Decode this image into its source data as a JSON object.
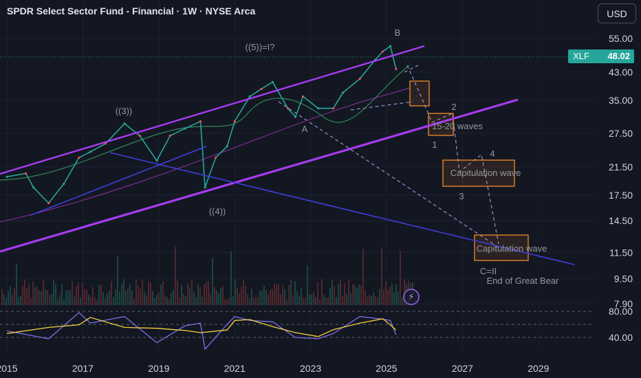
{
  "header": {
    "title": "SPDR Select Sector Fund - Financial · 1W · NYSE Arca",
    "currency_button": "USD"
  },
  "price_tag": {
    "symbol": "XLF",
    "price": "48.02",
    "color": "#26a69a"
  },
  "icons": {
    "alert": "lightning-icon"
  },
  "colors": {
    "background": "#131722",
    "channel": "#a63cf0",
    "trendline": "#3f3fd9",
    "box": "#f28c28",
    "projection": "#9a8fd6",
    "ma_fast": "#2e8b57",
    "ma_slow": "#7b2d8e",
    "rsi_line": "#7e6ee6",
    "rsi_ma": "#f5d142"
  },
  "chart_data": [
    {
      "type": "line",
      "title": "SPDR Select Sector Fund - Financial · 1W · NYSE Arca",
      "y_scale": "log",
      "ylim": [
        7.9,
        62
      ],
      "xlim": [
        2015.0,
        2030.0
      ],
      "x_ticks": [
        "2015",
        "2017",
        "2019",
        "2021",
        "2023",
        "2025",
        "2027",
        "2029"
      ],
      "y_ticks": [
        "55.00",
        "43.00",
        "35.00",
        "27.50",
        "21.50",
        "17.50",
        "14.50",
        "11.50",
        "9.50",
        "7.90"
      ],
      "last_price": 48.02,
      "series": [
        {
          "x": [
            2015.0,
            2015.5,
            2015.7,
            2016.1,
            2016.5,
            2016.9,
            2017.2,
            2017.6,
            2018.1,
            2018.5,
            2018.95,
            2019.3,
            2019.7,
            2020.1,
            2020.22,
            2020.5,
            2020.8,
            2021.0,
            2021.4,
            2021.7,
            2022.0,
            2022.4,
            2022.6,
            2022.8,
            2023.2,
            2023.6,
            2023.85,
            2024.3,
            2024.7,
            2024.9,
            2025.1,
            2025.25
          ],
          "y": [
            20,
            20.5,
            18.5,
            16.5,
            19,
            23,
            24,
            25.5,
            29.5,
            27,
            22.5,
            27,
            28.5,
            30,
            18.5,
            23,
            25,
            30,
            36,
            38,
            40,
            33,
            31,
            36,
            33,
            33,
            37,
            41,
            47,
            50,
            52,
            44
          ]
        }
      ],
      "annotations": [
        "((5))=I?",
        "B",
        "((3))",
        "((4))",
        "A",
        "1",
        "2",
        "3",
        "4",
        "15-20 waves",
        "Capitulation wave",
        "Capitulation wave",
        "C=II",
        "End of Great Bear"
      ]
    },
    {
      "type": "line",
      "y_ticks": [
        "80.00",
        "40.00"
      ],
      "ylim": [
        25,
        85
      ],
      "series": [
        {
          "x": [
            2015.0,
            2016.1,
            2016.9,
            2017.2,
            2018.1,
            2018.95,
            2019.7,
            2020.1,
            2020.22,
            2020.8,
            2021.0,
            2021.4,
            2022.0,
            2022.6,
            2023.2,
            2023.6,
            2024.3,
            2024.9,
            2025.1,
            2025.25
          ],
          "y": [
            50,
            38,
            78,
            62,
            72,
            32,
            58,
            62,
            22,
            60,
            72,
            66,
            64,
            40,
            38,
            46,
            72,
            68,
            66,
            44
          ]
        }
      ]
    }
  ]
}
